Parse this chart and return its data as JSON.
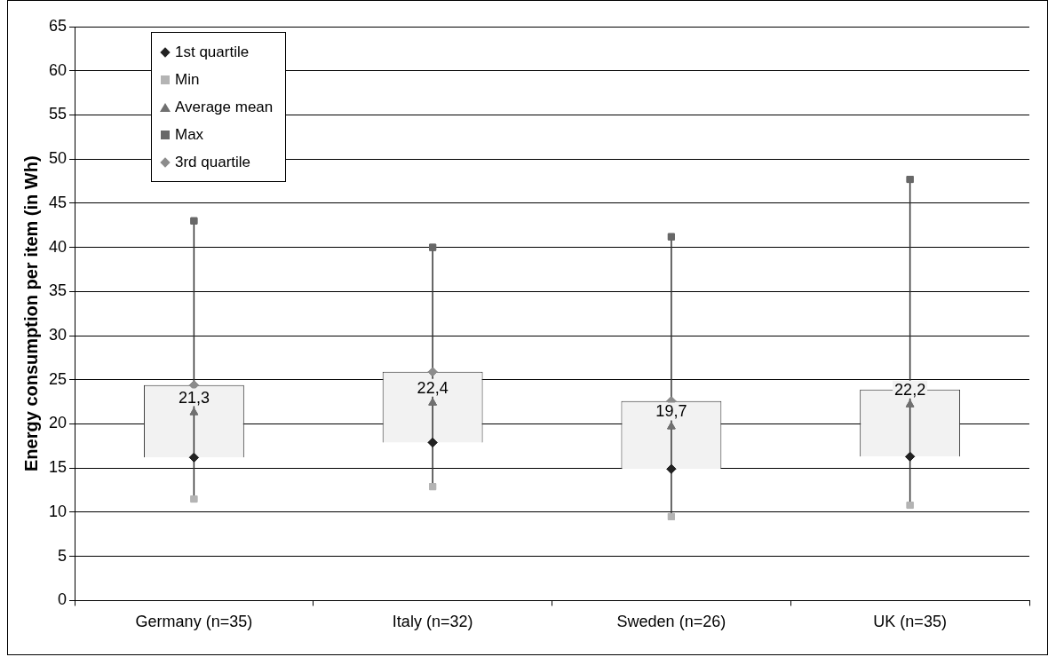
{
  "chart_data": {
    "type": "bar",
    "ylabel": "Energy consumption per item (in Wh)",
    "categories": [
      "Germany (n=35)",
      "Italy (n=32)",
      "Sweden (n=26)",
      "UK (n=35)"
    ],
    "ylim": [
      0,
      65
    ],
    "yticks": [
      0,
      5,
      10,
      15,
      20,
      25,
      30,
      35,
      40,
      45,
      50,
      55,
      60,
      65
    ],
    "grid": "y",
    "legend": "top left",
    "series": [
      {
        "color": "#f2f2f2",
        "base": [
          16.2,
          17.9,
          14.9,
          16.3
        ],
        "values": [
          8.2,
          8.0,
          7.7,
          7.6
        ]
      },
      {
        "type": "scatter",
        "name": "1st quartile",
        "color": "#222222",
        "marker": "diamond",
        "values": [
          16.2,
          17.9,
          14.9,
          16.3
        ]
      },
      {
        "type": "scatter",
        "name": "Min",
        "color": "#b4b4b4",
        "marker": "square",
        "values": [
          11.5,
          12.9,
          9.5,
          10.8
        ]
      },
      {
        "type": "scatter",
        "name": "Average mean",
        "color": "#707070",
        "marker": "triangle",
        "values": [
          21.3,
          22.4,
          19.7,
          22.2
        ],
        "value_labels": [
          "21,3",
          "22,4",
          "19,7",
          "22,2"
        ]
      },
      {
        "type": "scatter",
        "name": "Max",
        "color": "#686868",
        "marker": "square",
        "values": [
          43.0,
          40.0,
          41.2,
          47.7
        ]
      },
      {
        "type": "scatter",
        "name": "3rd quartile",
        "color": "#8c8c8c",
        "marker": "diamond",
        "values": [
          24.4,
          25.9,
          22.6,
          23.9
        ]
      }
    ]
  }
}
